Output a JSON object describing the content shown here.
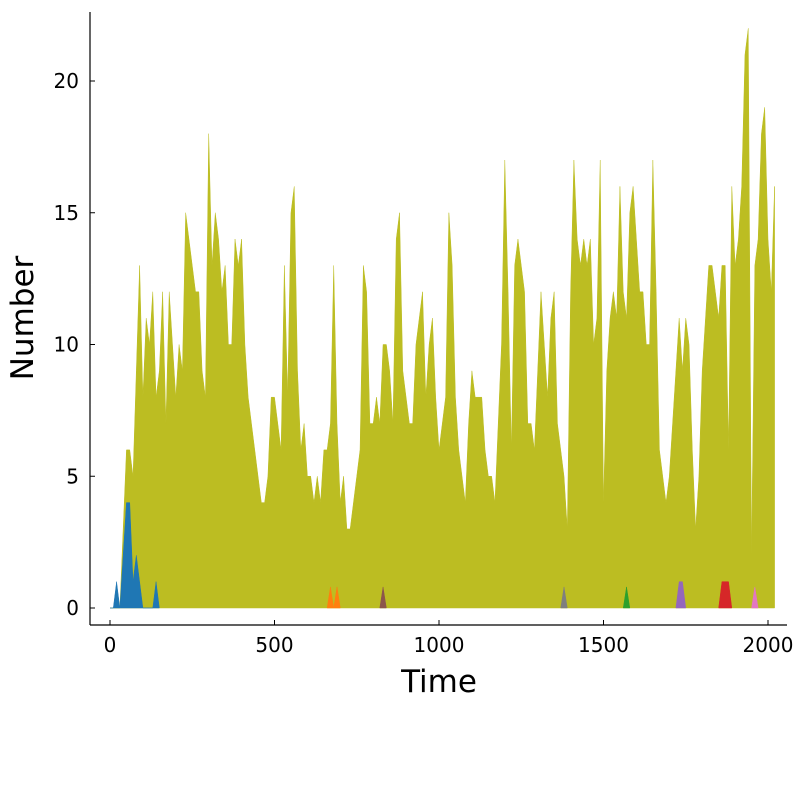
{
  "chart_data": {
    "type": "area",
    "title": "",
    "xlabel": "Time",
    "ylabel": "Number",
    "xlim": [
      0,
      2000
    ],
    "ylim": [
      0,
      22
    ],
    "xticks": [
      0,
      500,
      1000,
      1500,
      2000
    ],
    "xtick_labels": [
      "0",
      "500",
      "1000",
      "1500",
      "2000"
    ],
    "yticks": [
      0,
      5,
      10,
      15,
      20
    ],
    "ytick_labels": [
      "0",
      "5",
      "10",
      "15",
      "20"
    ],
    "grid": false,
    "legend": "none",
    "x_step": 10,
    "series": [
      {
        "color": "#bcbd22",
        "values": [
          0,
          0,
          0,
          0,
          3,
          6,
          6,
          5,
          9,
          13,
          8,
          11,
          10,
          12,
          8,
          9,
          12,
          7,
          12,
          10,
          8,
          10,
          9,
          15,
          14,
          13,
          12,
          12,
          9,
          8,
          18,
          13,
          15,
          14,
          12,
          13,
          10,
          10,
          14,
          13,
          14,
          10,
          8,
          7,
          6,
          5,
          4,
          4,
          5,
          8,
          8,
          7,
          6,
          13,
          8,
          15,
          16,
          9,
          6,
          7,
          5,
          5,
          4,
          5,
          4,
          6,
          6,
          7,
          13,
          7,
          4,
          5,
          3,
          3,
          4,
          5,
          6,
          13,
          12,
          7,
          7,
          8,
          7,
          10,
          10,
          9,
          7,
          14,
          15,
          9,
          8,
          7,
          7,
          10,
          11,
          12,
          8,
          10,
          11,
          8,
          6,
          7,
          8,
          15,
          13,
          8,
          6,
          5,
          4,
          7,
          9,
          8,
          8,
          8,
          6,
          5,
          5,
          4,
          7,
          10,
          17,
          12,
          6,
          13,
          14,
          13,
          12,
          7,
          7,
          6,
          9,
          12,
          10,
          8,
          11,
          12,
          7,
          6,
          5,
          3,
          12,
          17,
          14,
          13,
          14,
          13,
          14,
          10,
          11,
          17,
          4,
          9,
          11,
          12,
          11,
          16,
          12,
          11,
          15,
          16,
          14,
          12,
          12,
          10,
          10,
          17,
          12,
          6,
          5,
          4,
          5,
          7,
          9,
          11,
          9,
          11,
          10,
          6,
          3,
          5,
          9,
          11,
          13,
          13,
          12,
          11,
          13,
          13,
          6,
          16,
          13,
          14,
          16,
          21,
          22,
          2,
          13,
          14,
          18,
          19,
          14,
          12,
          16
        ]
      },
      {
        "color": "#1f77b4",
        "values": [
          0,
          0,
          1,
          0,
          2,
          4,
          4,
          1,
          2,
          1,
          0,
          0,
          0,
          0,
          1,
          0
        ]
      },
      {
        "color": "#ff7f0e",
        "points": [
          [
            660,
            0
          ],
          [
            670,
            0.8
          ],
          [
            680,
            0
          ],
          [
            690,
            0.8
          ],
          [
            700,
            0
          ]
        ]
      },
      {
        "color": "#8c564b",
        "points": [
          [
            820,
            0
          ],
          [
            830,
            0.8
          ],
          [
            840,
            0
          ]
        ]
      },
      {
        "color": "#7f7f7f",
        "points": [
          [
            1370,
            0
          ],
          [
            1380,
            0.8
          ],
          [
            1390,
            0
          ]
        ]
      },
      {
        "color": "#2ca02c",
        "points": [
          [
            1560,
            0
          ],
          [
            1570,
            0.8
          ],
          [
            1580,
            0
          ]
        ]
      },
      {
        "color": "#9467bd",
        "points": [
          [
            1720,
            0
          ],
          [
            1730,
            1
          ],
          [
            1740,
            1
          ],
          [
            1750,
            0
          ]
        ]
      },
      {
        "color": "#d62728",
        "points": [
          [
            1850,
            0
          ],
          [
            1860,
            1
          ],
          [
            1870,
            1
          ],
          [
            1880,
            1
          ],
          [
            1890,
            0
          ]
        ]
      },
      {
        "color": "#e377c2",
        "points": [
          [
            1950,
            0
          ],
          [
            1960,
            0.8
          ],
          [
            1970,
            0
          ]
        ]
      }
    ]
  }
}
